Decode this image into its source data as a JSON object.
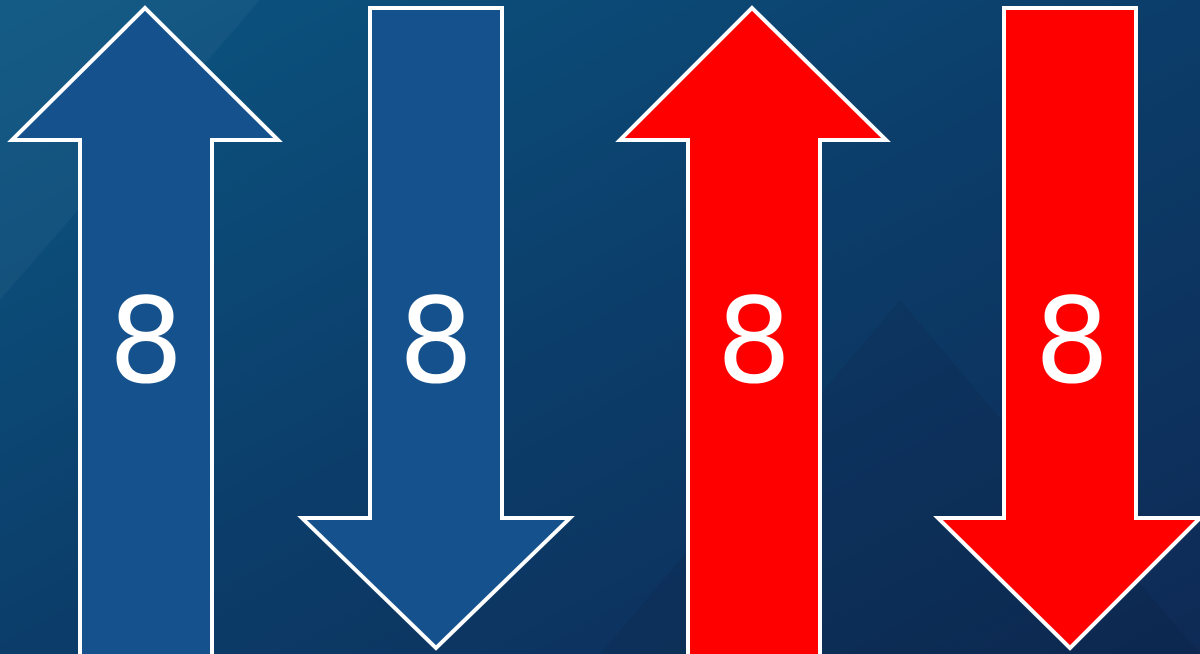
{
  "arrows": [
    {
      "label": "8"
    },
    {
      "label": "8"
    },
    {
      "label": "8"
    },
    {
      "label": "8"
    }
  ]
}
